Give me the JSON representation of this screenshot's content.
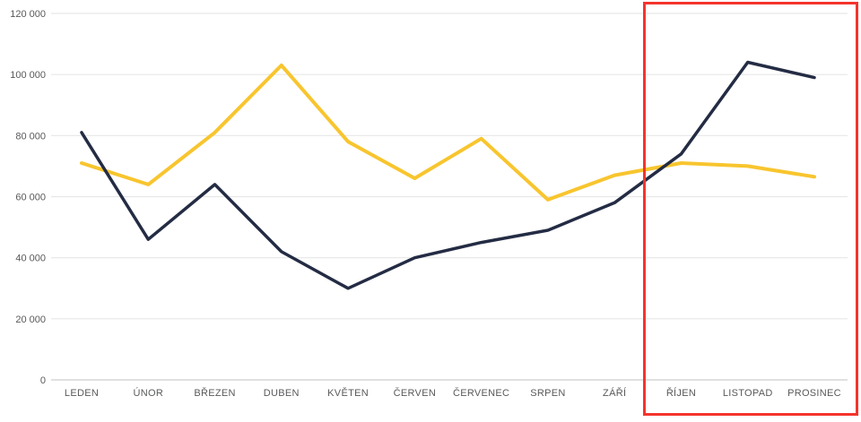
{
  "chart_data": {
    "type": "line",
    "title": "",
    "xlabel": "",
    "ylabel": "",
    "grid": true,
    "legend_position": "none",
    "ylim": [
      0,
      120000
    ],
    "categories": [
      "LEDEN",
      "ÚNOR",
      "BŘEZEN",
      "DUBEN",
      "KVĚTEN",
      "ČERVEN",
      "ČERVENEC",
      "SRPEN",
      "ZÁŘÍ",
      "ŘÍJEN",
      "LISTOPAD",
      "PROSINEC"
    ],
    "y_ticks": [
      {
        "value": 0,
        "label": "0"
      },
      {
        "value": 20000,
        "label": "20 000"
      },
      {
        "value": 40000,
        "label": "40 000"
      },
      {
        "value": 60000,
        "label": "60 000"
      },
      {
        "value": 80000,
        "label": "80 000"
      },
      {
        "value": 100000,
        "label": "100 000"
      },
      {
        "value": 120000,
        "label": "120 000"
      }
    ],
    "series": [
      {
        "name": "yellow-series",
        "color": "#f8c52e",
        "stroke_width": 4,
        "values": [
          71000,
          64000,
          81000,
          103000,
          78000,
          66000,
          79000,
          59000,
          67000,
          71000,
          70000,
          66500
        ]
      },
      {
        "name": "navy-series",
        "color": "#242c44",
        "stroke_width": 3.5,
        "values": [
          81000,
          46000,
          64000,
          42000,
          30000,
          40000,
          45000,
          49000,
          58000,
          74000,
          104000,
          99000
        ]
      }
    ],
    "highlight": {
      "shape": "rectangle",
      "color": "#f4342c",
      "categories": [
        "ŘÍJEN",
        "LISTOPAD",
        "PROSINEC"
      ]
    }
  },
  "colors": {
    "background": "#ffffff",
    "gridline": "#e7e7e7",
    "axis_line": "#d6d6d6",
    "tick_text": "#58595b"
  }
}
